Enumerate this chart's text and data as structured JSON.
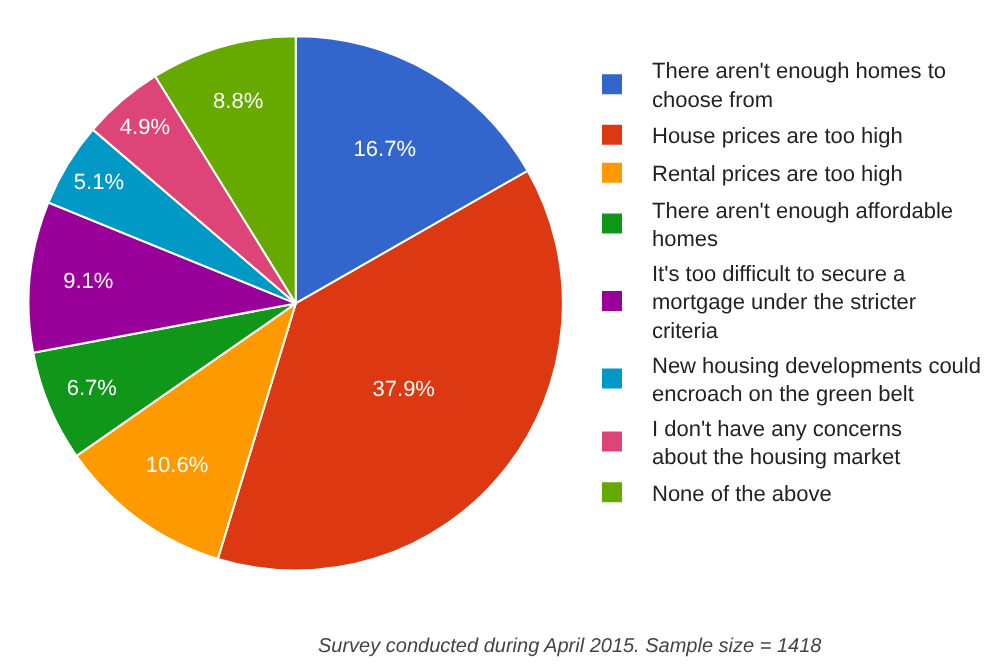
{
  "chart_data": {
    "type": "pie",
    "categories": [
      "There aren't enough homes to choose from",
      "House prices are too high",
      "Rental prices are too high",
      "There aren't enough affordable homes",
      "It's too difficult to secure a mortgage under the stricter criteria",
      "New housing developments could encroach on the green belt",
      "I don't have any concerns about the housing market",
      "None of the above"
    ],
    "values": [
      16.7,
      37.9,
      10.6,
      6.7,
      9.1,
      5.1,
      4.9,
      8.8
    ],
    "value_labels": [
      "16.7%",
      "37.9%",
      "10.6%",
      "6.7%",
      "9.1%",
      "5.1%",
      "4.9%",
      "8.8%"
    ],
    "colors": [
      "#3366cc",
      "#dc3912",
      "#ff9900",
      "#109618",
      "#990099",
      "#0099c6",
      "#dd4477",
      "#66aa00"
    ],
    "legend": "right",
    "annotations": [
      "Survey conducted during April 2015. Sample size = 1418"
    ]
  }
}
